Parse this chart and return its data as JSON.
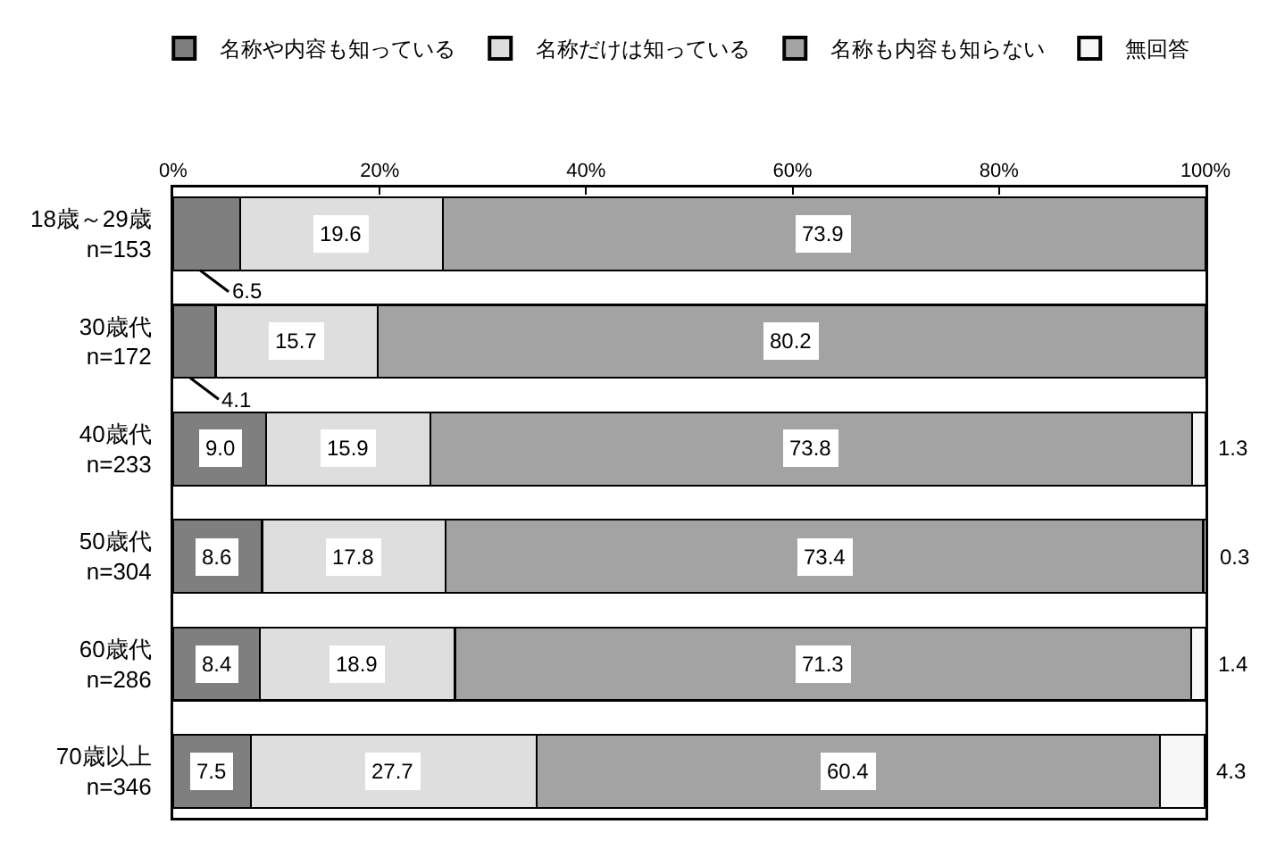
{
  "chart_data": {
    "type": "bar",
    "orientation": "horizontal",
    "stacked": true,
    "categories": [
      "18歳～29歳\nn=153",
      "30歳代\nn=172",
      "40歳代\nn=233",
      "50歳代\nn=304",
      "60歳代\nn=286",
      "70歳以上\nn=346"
    ],
    "series": [
      {
        "name": "名称や内容も知っている",
        "color": "#7f7f7f",
        "values": [
          6.5,
          4.1,
          9.0,
          8.6,
          8.4,
          7.5
        ],
        "value_labels": [
          "6.5",
          "4.1",
          "9.0",
          "8.6",
          "8.4",
          "7.5"
        ]
      },
      {
        "name": "名称だけは知っている",
        "color": "#dedede",
        "values": [
          19.6,
          15.7,
          15.9,
          17.8,
          18.9,
          27.7
        ],
        "value_labels": [
          "19.6",
          "15.7",
          "15.9",
          "17.8",
          "18.9",
          "27.7"
        ]
      },
      {
        "name": "名称も内容も知らない",
        "color": "#a3a3a3",
        "values": [
          73.9,
          80.2,
          73.8,
          73.4,
          71.3,
          60.4
        ],
        "value_labels": [
          "73.9",
          "80.2",
          "73.8",
          "73.4",
          "71.3",
          "60.4"
        ]
      },
      {
        "name": "無回答",
        "color": "#f7f7f7",
        "values": [
          null,
          null,
          1.3,
          0.3,
          1.4,
          4.3
        ],
        "value_labels": [
          null,
          null,
          "1.3",
          "0.3",
          "1.4",
          "4.3"
        ]
      }
    ],
    "xlim": [
      0,
      100
    ],
    "xticks": [
      {
        "value": 0,
        "label": "0%"
      },
      {
        "value": 20,
        "label": "20%"
      },
      {
        "value": 40,
        "label": "40%"
      },
      {
        "value": 60,
        "label": "60%"
      },
      {
        "value": 80,
        "label": "80%"
      },
      {
        "value": 100,
        "label": "100%"
      }
    ],
    "grid": false,
    "legend": "top"
  }
}
